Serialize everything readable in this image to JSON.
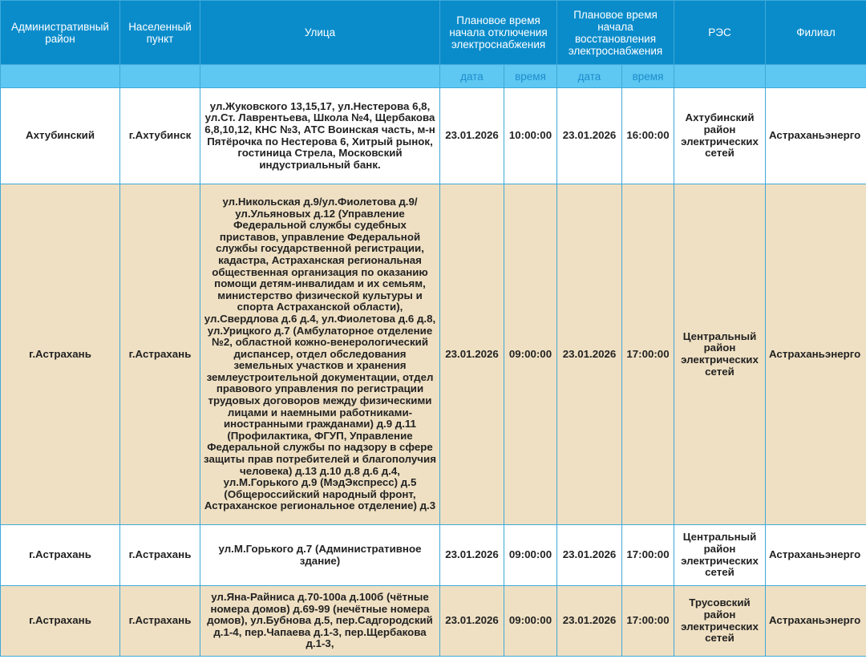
{
  "header": {
    "admin_district": "Административный район",
    "locality": "Населенный пункт",
    "street": "Улица",
    "planned_off": "Плановое время начала отключения электроснабжения",
    "planned_on": "Плановое время начала восстановления электроснабжения",
    "res": "РЭС",
    "branch": "Филиал",
    "sub": {
      "date1": "дата",
      "time1": "время",
      "date2": "дата",
      "time2": "время"
    }
  },
  "colors": {
    "header_bg": "#0a8ccb",
    "subheader_bg": "#5ec8f2",
    "row_alt_bg": "#efe0c3",
    "border": "#3fa9d8"
  },
  "rows": [
    {
      "district": "Ахтубинский",
      "locality": "г.Ахтубинск",
      "street": "ул.Жуковского 13,15,17, ул.Нестерова 6,8, ул.Ст. Лаврентьева, Школа №4, Щербакова 6,8,10,12, КНС №3, АТС Воинская часть, м-н Пятёрочка по Нестерова 6, Хитрый рынок, гостиница Стрела, Московский индустриальный банк.",
      "off_date": "23.01.2026",
      "off_time": "10:00:00",
      "on_date": "23.01.2026",
      "on_time": "16:00:00",
      "res": "Ахтубинский район электрических сетей",
      "branch": "Астраханьэнерго"
    },
    {
      "district": "г.Астрахань",
      "locality": "г.Астрахань",
      "street": "ул.Никольская д.9/ул.Фиолетова д.9/ ул.Ульяновых д.12 (Управление Федеральной службы судебных приставов, управление Федеральной службы государственной регистрации, кадастра, Астраханская региональная общественная организация по оказанию помощи детям-инвалидам и их семьям, министерство физической культуры и спорта Астраханской области), ул.Свердлова д.6 д.4, ул.Фиолетова д.6 д.8, ул.Урицкого д.7 (Амбулаторное отделение №2, областной кожно-венерологический диспансер, отдел обследования земельных участков и хранения землеустроительной документации, отдел правового управления по регистрации трудовых договоров между физическими лицами и наемными работниками-иностранными гражданами) д.9 д.11 (Профилактика, ФГУП, Управление Федеральной службы по надзору в сфере защиты прав потребителей и благополучия человека) д.13 д.10 д.8 д.6 д.4, ул.М.Горького д.9 (МэдЭкспресс) д.5 (Общероссийский народный фронт, Астраханское региональное отделение) д.3",
      "off_date": "23.01.2026",
      "off_time": "09:00:00",
      "on_date": "23.01.2026",
      "on_time": "17:00:00",
      "res": "Центральный район электрических сетей",
      "branch": "Астраханьэнерго"
    },
    {
      "district": "г.Астрахань",
      "locality": "г.Астрахань",
      "street": "ул.М.Горького д.7 (Административное здание)",
      "off_date": "23.01.2026",
      "off_time": "09:00:00",
      "on_date": "23.01.2026",
      "on_time": "17:00:00",
      "res": "Центральный район электрических сетей",
      "branch": "Астраханьэнерго"
    },
    {
      "district": "г.Астрахань",
      "locality": "г.Астрахань",
      "street": "ул.Яна-Райниса д.70-100а д.100б (чётные номера домов) д.69-99 (нечётные номера домов), ул.Бубнова д.5, пер.Садгородский д.1-4, пер.Чапаева д.1-3, пер.Щербакова д.1-3,",
      "off_date": "23.01.2026",
      "off_time": "09:00:00",
      "on_date": "23.01.2026",
      "on_time": "17:00:00",
      "res": "Трусовский район электрических сетей",
      "branch": "Астраханьэнерго"
    }
  ]
}
